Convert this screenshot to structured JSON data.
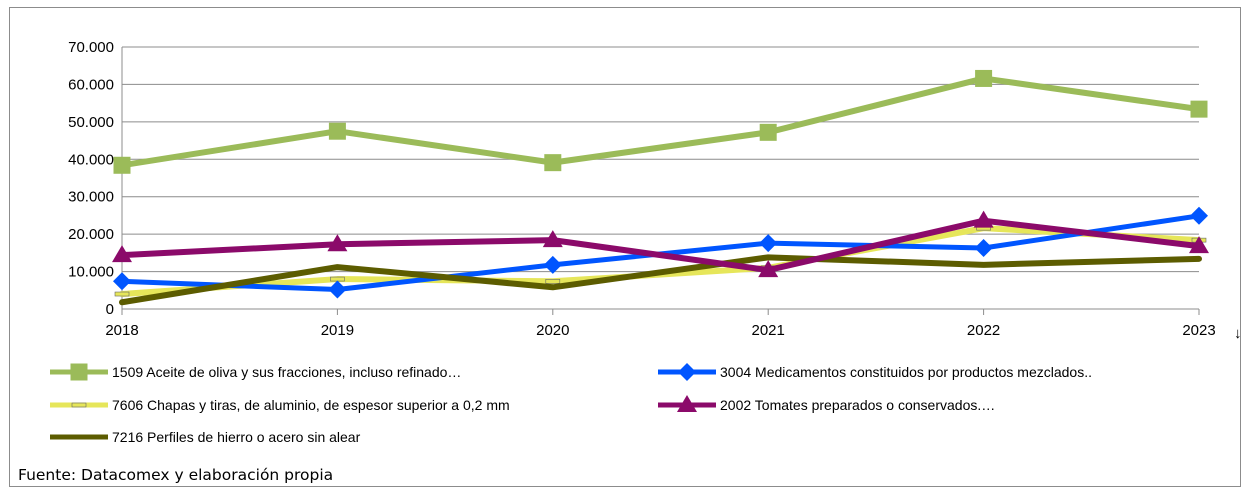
{
  "chart_data": {
    "type": "line",
    "categories": [
      "2018",
      "2019",
      "2020",
      "2021",
      "2022",
      "2023"
    ],
    "last_category_marker": "↓",
    "ylim": [
      0,
      70000
    ],
    "yticks": [
      "0",
      "10.000",
      "20.000",
      "30.000",
      "40.000",
      "50.000",
      "60.000",
      "70.000"
    ],
    "grid": "horizontal",
    "legend_placement": "bottom",
    "series": [
      {
        "name": "1509 Aceite de oliva y sus fracciones, incluso refinado…",
        "color": "#9BBB59",
        "marker": "square",
        "values": [
          38400,
          47500,
          39100,
          47200,
          61600,
          53400
        ]
      },
      {
        "name": "3004 Medicamentos constituidos por productos mezclados..",
        "color": "#0055FF",
        "marker": "diamond",
        "values": [
          7400,
          5200,
          11800,
          17600,
          16300,
          24900
        ]
      },
      {
        "name": "7606 Chapas y tiras, de aluminio, de espesor superior a 0,2 mm",
        "color": "#E6E65A",
        "marker": "dash",
        "values": [
          4000,
          8000,
          7400,
          11000,
          21600,
          18400
        ]
      },
      {
        "name": "2002 Tomates preparados o conservados.…",
        "color": "#8B0A6A",
        "marker": "triangle",
        "values": [
          14400,
          17300,
          18400,
          10400,
          23600,
          16800
        ]
      },
      {
        "name": "7216 Perfiles de hierro o acero sin alear",
        "color": "#5C5C00",
        "marker": "none",
        "values": [
          1800,
          11200,
          5800,
          13800,
          11800,
          13400
        ]
      }
    ]
  },
  "source_note": "Fuente: Datacomex y elaboración propia"
}
